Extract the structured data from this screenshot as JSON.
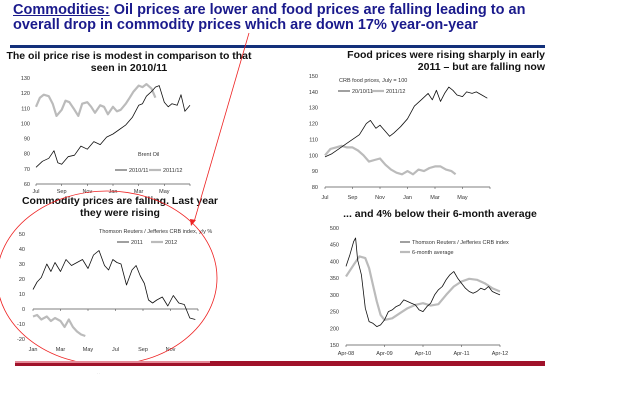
{
  "headline": {
    "keyword": "Commodities:",
    "text": " Oil prices are lower and food prices are falling leading to an overall drop in commodity prices which are down 17% year-on-year"
  },
  "colors": {
    "headline": "#1a1a8c",
    "rule_top": "#13307a",
    "rule_bottom": "#a0122a",
    "annotation": "#ee2222",
    "series_dark": "#111111",
    "series_light": "#bbbbbb"
  },
  "annotation": {
    "shape": "ellipse-with-arrow",
    "target": "commodity-yoy-chart"
  },
  "footer_note": ". .",
  "chart_data": [
    {
      "id": "oil",
      "type": "line",
      "title": "The oil price rise is modest in comparison to that seen in 2010/11",
      "note": "Brent Oil",
      "xlabel": "",
      "ylabel": "",
      "ylim": [
        60,
        130
      ],
      "yticks": [
        130,
        120,
        110,
        100,
        90,
        80,
        70,
        60
      ],
      "xticks": [
        "Jul",
        "Sep",
        "Nov",
        "Jan",
        "Mar",
        "May"
      ],
      "x_months": [
        0,
        2,
        4,
        6,
        8,
        10
      ],
      "xlim": [
        0,
        12
      ],
      "legend": "bottom-right",
      "series": [
        {
          "name": "2010/11",
          "style": "dark",
          "x": [
            0,
            0.5,
            1,
            1.4,
            1.7,
            2,
            2.5,
            3,
            3.5,
            4,
            4.5,
            5,
            5.5,
            6,
            6.5,
            7,
            7.5,
            8,
            8.3,
            8.6,
            9,
            9.3,
            9.6,
            10,
            10.3,
            10.6,
            11,
            11.3,
            11.6,
            12
          ],
          "values": [
            71,
            75,
            77,
            82,
            74,
            73,
            78,
            79,
            85,
            83,
            88,
            86,
            91,
            93,
            96,
            99,
            104,
            112,
            113,
            118,
            121,
            124,
            125,
            114,
            111,
            113,
            112,
            119,
            108,
            112
          ]
        },
        {
          "name": "2011/12",
          "style": "light",
          "x": [
            0,
            0.3,
            0.6,
            1,
            1.3,
            1.6,
            2,
            2.3,
            2.6,
            3,
            3.3,
            3.6,
            4,
            4.3,
            4.6,
            5,
            5.3,
            5.6,
            6,
            6.3,
            6.6,
            7,
            7.3,
            7.6,
            8,
            8.3,
            8.6,
            9,
            9.3
          ],
          "values": [
            111,
            117,
            119,
            118,
            113,
            105,
            109,
            115,
            114,
            109,
            105,
            113,
            114,
            111,
            107,
            112,
            111,
            106,
            111,
            108,
            109,
            113,
            117,
            121,
            125,
            124,
            126,
            123,
            117
          ]
        }
      ]
    },
    {
      "id": "food",
      "type": "line",
      "title": "Food prices were rising sharply in early 2011 – but are falling now",
      "note": "CRB food prices, July = 100",
      "xlabel": "",
      "ylabel": "",
      "ylim": [
        80,
        150
      ],
      "yticks": [
        150,
        140,
        130,
        120,
        110,
        100,
        90,
        80
      ],
      "xticks": [
        "Jul",
        "Sep",
        "Nov",
        "Jan",
        "Mar",
        "May"
      ],
      "x_months": [
        0,
        2,
        4,
        6,
        8,
        10
      ],
      "xlim": [
        0,
        12
      ],
      "legend": "top-left",
      "series": [
        {
          "name": "20/10/11",
          "style": "dark",
          "x": [
            0,
            0.5,
            1,
            1.5,
            2,
            2.5,
            3,
            3.3,
            3.7,
            4,
            4.3,
            4.7,
            5,
            5.5,
            6,
            6.5,
            7,
            7.5,
            7.8,
            8.1,
            8.4,
            8.7,
            9,
            9.3,
            9.6,
            10,
            10.3,
            10.7,
            11,
            11.4,
            11.8
          ],
          "values": [
            99,
            101,
            104,
            107,
            110,
            113,
            120,
            122,
            117,
            119,
            116,
            112,
            114,
            118,
            123,
            131,
            135,
            139,
            135,
            141,
            134,
            139,
            143,
            141,
            138,
            137,
            140,
            139,
            140,
            138,
            136
          ]
        },
        {
          "name": "2011/12",
          "style": "light",
          "x": [
            0,
            0.4,
            0.8,
            1.2,
            1.6,
            2,
            2.4,
            2.8,
            3.2,
            3.6,
            4,
            4.4,
            4.8,
            5.2,
            5.6,
            6,
            6.4,
            6.8,
            7.2,
            7.6,
            8,
            8.4,
            8.8,
            9.2,
            9.5
          ],
          "values": [
            100,
            104,
            105,
            106,
            105,
            105,
            103,
            100,
            96,
            97,
            98,
            94,
            91,
            89,
            88,
            90,
            88,
            91,
            90,
            92,
            93,
            93,
            91,
            90,
            88
          ]
        }
      ]
    },
    {
      "id": "commodity-yoy",
      "type": "line",
      "title": "Commodity prices are falling. Last year they were rising",
      "note": "Thomson Reuters / Jefferies CRB index, y/y %",
      "xlabel": "",
      "ylabel": "",
      "ylim": [
        -20,
        50
      ],
      "yticks": [
        50,
        40,
        30,
        20,
        10,
        0,
        -10,
        -20
      ],
      "xticks": [
        "Jan",
        "Mar",
        "May",
        "Jul",
        "Sep",
        "Nov"
      ],
      "x_months": [
        0,
        2,
        4,
        6,
        8,
        10
      ],
      "xlim": [
        0,
        12
      ],
      "legend": "top-right",
      "series": [
        {
          "name": "2011",
          "style": "dark",
          "x": [
            0,
            0.3,
            0.6,
            1,
            1.3,
            1.6,
            2,
            2.4,
            2.8,
            3.2,
            3.6,
            4,
            4.4,
            4.8,
            5.2,
            5.5,
            5.8,
            6.1,
            6.4,
            6.8,
            7.2,
            7.5,
            7.8,
            8.1,
            8.4,
            8.7,
            9,
            9.4,
            9.8,
            10.2,
            10.6,
            11,
            11.4,
            11.8
          ],
          "values": [
            13,
            18,
            21,
            30,
            25,
            31,
            25,
            33,
            29,
            31,
            33,
            27,
            36,
            39,
            29,
            26,
            33,
            31,
            30,
            16,
            26,
            29,
            22,
            17,
            6,
            4,
            6,
            8,
            2,
            9,
            4,
            3,
            -6,
            -7
          ]
        },
        {
          "name": "2012",
          "style": "light",
          "x": [
            0,
            0.3,
            0.6,
            1,
            1.3,
            1.6,
            2,
            2.3,
            2.6,
            2.9,
            3.2,
            3.5,
            3.8
          ],
          "values": [
            -5,
            -4,
            -7,
            -5,
            -8,
            -6,
            -8,
            -12,
            -7,
            -12,
            -15,
            -17,
            -18
          ]
        }
      ]
    },
    {
      "id": "crb-index",
      "type": "line",
      "title": "... and 4% below their 6-month average",
      "xlabel": "",
      "ylabel": "",
      "ylim": [
        150,
        500
      ],
      "yticks": [
        500,
        450,
        400,
        350,
        300,
        250,
        200,
        150
      ],
      "xticks": [
        "Apr-08",
        "Apr-09",
        "Apr-10",
        "Apr-11",
        "Apr-12"
      ],
      "x_years": [
        0,
        1,
        2,
        3,
        4
      ],
      "xlim": [
        0,
        4
      ],
      "legend": "top-right",
      "series": [
        {
          "name": "Thomson Reuters / Jefferies CRB index",
          "style": "dark",
          "x": [
            0,
            0.1,
            0.2,
            0.25,
            0.3,
            0.4,
            0.5,
            0.6,
            0.7,
            0.8,
            0.9,
            1,
            1.1,
            1.2,
            1.3,
            1.4,
            1.5,
            1.6,
            1.7,
            1.8,
            1.9,
            2,
            2.1,
            2.2,
            2.3,
            2.4,
            2.5,
            2.6,
            2.7,
            2.8,
            2.9,
            3,
            3.1,
            3.2,
            3.3,
            3.4,
            3.5,
            3.6,
            3.7,
            3.8,
            3.9,
            4
          ],
          "values": [
            385,
            420,
            460,
            470,
            405,
            360,
            260,
            220,
            215,
            205,
            210,
            225,
            250,
            255,
            265,
            270,
            285,
            280,
            275,
            270,
            255,
            250,
            265,
            275,
            300,
            315,
            325,
            345,
            360,
            370,
            350,
            335,
            320,
            310,
            305,
            310,
            320,
            315,
            325,
            310,
            305,
            300
          ]
        },
        {
          "name": "6-month average",
          "style": "light",
          "x": [
            0,
            0.2,
            0.35,
            0.5,
            0.6,
            0.7,
            0.8,
            0.9,
            1,
            1.2,
            1.4,
            1.6,
            1.8,
            2,
            2.2,
            2.4,
            2.6,
            2.8,
            3,
            3.2,
            3.4,
            3.6,
            3.8,
            4
          ],
          "values": [
            355,
            390,
            415,
            410,
            380,
            330,
            280,
            240,
            225,
            230,
            245,
            260,
            270,
            275,
            268,
            272,
            300,
            325,
            340,
            348,
            345,
            335,
            320,
            310
          ]
        }
      ]
    }
  ]
}
